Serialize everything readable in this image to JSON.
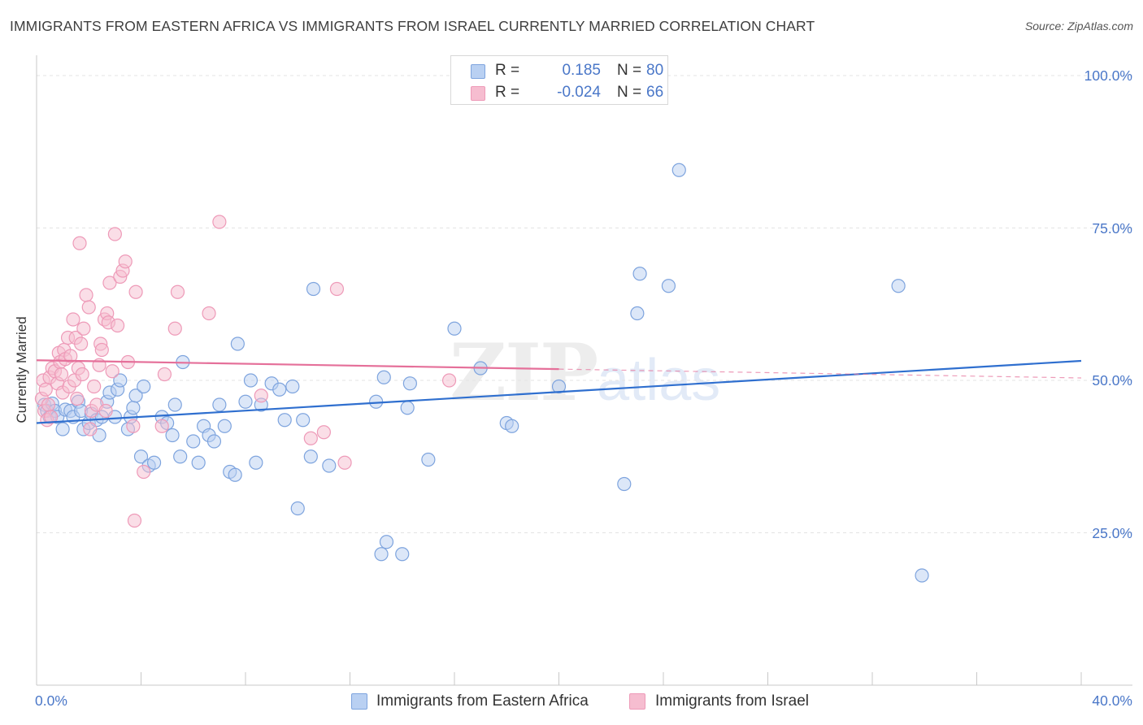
{
  "title": "IMMIGRANTS FROM EASTERN AFRICA VS IMMIGRANTS FROM ISRAEL CURRENTLY MARRIED CORRELATION CHART",
  "source": "Source: ZipAtlas.com",
  "watermark": {
    "zip": "ZIP",
    "atlas": "atlas"
  },
  "colors": {
    "blue": "#4a77c8",
    "blue_fill": "#b9d0f2",
    "blue_stroke": "#7ea4de",
    "blue_line": "#2f6fcf",
    "pink": "#e0628e",
    "pink_fill": "#f6bdd0",
    "pink_stroke": "#ee9ab8",
    "pink_line": "#e5709a"
  },
  "legend": {
    "rows": [
      {
        "r_label": "R =",
        "r_value": "0.185",
        "n_label": "N =",
        "n_value": "80",
        "color": "blue"
      },
      {
        "r_label": "R =",
        "r_value": "-0.024",
        "n_label": "N =",
        "n_value": "66",
        "color": "pink"
      }
    ]
  },
  "bottom_legend": [
    {
      "label": "Immigrants from Eastern Africa",
      "color": "blue"
    },
    {
      "label": "Immigrants from Israel",
      "color": "pink"
    }
  ],
  "chart_data": {
    "type": "scatter",
    "title": "IMMIGRANTS FROM EASTERN AFRICA VS IMMIGRANTS FROM ISRAEL CURRENTLY MARRIED CORRELATION CHART",
    "xlabel": "",
    "ylabel": "Currently Married",
    "xlim": [
      0,
      40
    ],
    "ylim": [
      0,
      102
    ],
    "x_tick_labels": [
      {
        "value": 0,
        "label": "0.0%"
      },
      {
        "value": 40,
        "label": "40.0%"
      }
    ],
    "y_tick_labels": [
      {
        "value": 25,
        "label": "25.0%"
      },
      {
        "value": 50,
        "label": "50.0%"
      },
      {
        "value": 75,
        "label": "75.0%"
      },
      {
        "value": 100,
        "label": "100.0%"
      }
    ],
    "x_minor_ticks": [
      0,
      4,
      8,
      12,
      16,
      20,
      24,
      28,
      32,
      36,
      40
    ],
    "grid": true,
    "series": [
      {
        "name": "Immigrants from Eastern Africa",
        "color": "blue",
        "r": 0.185,
        "n": 80,
        "trend": {
          "x": [
            0,
            40
          ],
          "y": [
            43.0,
            53.2
          ],
          "dashed_from": null
        },
        "points": [
          [
            0.3,
            46.0
          ],
          [
            0.4,
            45.0
          ],
          [
            0.5,
            44.0
          ],
          [
            0.6,
            46.2
          ],
          [
            0.7,
            45.0
          ],
          [
            0.8,
            44.0
          ],
          [
            1.0,
            42.0
          ],
          [
            1.1,
            45.2
          ],
          [
            1.3,
            45.0
          ],
          [
            1.4,
            44.0
          ],
          [
            1.6,
            46.5
          ],
          [
            1.7,
            45.0
          ],
          [
            1.8,
            42.0
          ],
          [
            2.0,
            43.0
          ],
          [
            2.1,
            44.5
          ],
          [
            2.3,
            43.5
          ],
          [
            2.4,
            41.0
          ],
          [
            2.5,
            44.0
          ],
          [
            2.7,
            46.5
          ],
          [
            2.8,
            48.0
          ],
          [
            3.0,
            44.0
          ],
          [
            3.1,
            48.5
          ],
          [
            3.2,
            50.0
          ],
          [
            3.5,
            42.0
          ],
          [
            3.6,
            44.0
          ],
          [
            3.7,
            45.5
          ],
          [
            3.8,
            47.5
          ],
          [
            4.0,
            37.5
          ],
          [
            4.1,
            49.0
          ],
          [
            4.3,
            36.0
          ],
          [
            4.5,
            36.5
          ],
          [
            4.8,
            44.0
          ],
          [
            5.0,
            43.0
          ],
          [
            5.2,
            41.0
          ],
          [
            5.3,
            46.0
          ],
          [
            5.5,
            37.5
          ],
          [
            5.6,
            53.0
          ],
          [
            6.0,
            40.0
          ],
          [
            6.2,
            36.5
          ],
          [
            6.4,
            42.5
          ],
          [
            6.6,
            41.0
          ],
          [
            7.0,
            46.0
          ],
          [
            7.2,
            42.5
          ],
          [
            7.4,
            35.0
          ],
          [
            7.6,
            34.5
          ],
          [
            7.7,
            56.0
          ],
          [
            8.0,
            46.5
          ],
          [
            8.2,
            50.0
          ],
          [
            8.4,
            36.5
          ],
          [
            8.6,
            46.0
          ],
          [
            9.0,
            49.5
          ],
          [
            9.3,
            48.5
          ],
          [
            9.5,
            43.5
          ],
          [
            9.8,
            49.0
          ],
          [
            10.0,
            29.0
          ],
          [
            10.2,
            43.5
          ],
          [
            10.5,
            37.5
          ],
          [
            10.6,
            65.0
          ],
          [
            11.2,
            36.0
          ],
          [
            13.0,
            46.5
          ],
          [
            13.2,
            21.5
          ],
          [
            13.3,
            50.5
          ],
          [
            13.4,
            23.5
          ],
          [
            14.0,
            21.5
          ],
          [
            14.2,
            45.5
          ],
          [
            14.3,
            49.5
          ],
          [
            15.0,
            37.0
          ],
          [
            16.0,
            58.5
          ],
          [
            17.0,
            52.0
          ],
          [
            18.0,
            43.0
          ],
          [
            18.2,
            42.5
          ],
          [
            22.5,
            33.0
          ],
          [
            23.0,
            61.0
          ],
          [
            23.1,
            67.5
          ],
          [
            24.2,
            65.5
          ],
          [
            24.6,
            84.5
          ],
          [
            33.0,
            65.5
          ],
          [
            33.9,
            18.0
          ],
          [
            20.0,
            49.0
          ],
          [
            6.8,
            40.0
          ]
        ]
      },
      {
        "name": "Immigrants from Israel",
        "color": "pink",
        "r": -0.024,
        "n": 66,
        "trend": {
          "x": [
            0,
            40
          ],
          "y": [
            53.3,
            50.4
          ],
          "dashed_from": 20
        },
        "points": [
          [
            0.2,
            47.0
          ],
          [
            0.25,
            50.0
          ],
          [
            0.3,
            45.0
          ],
          [
            0.35,
            48.5
          ],
          [
            0.4,
            43.5
          ],
          [
            0.45,
            46.0
          ],
          [
            0.5,
            50.5
          ],
          [
            0.55,
            44.0
          ],
          [
            0.6,
            52.0
          ],
          [
            0.7,
            51.5
          ],
          [
            0.8,
            49.5
          ],
          [
            0.85,
            54.5
          ],
          [
            0.9,
            53.0
          ],
          [
            0.95,
            51.0
          ],
          [
            1.0,
            48.0
          ],
          [
            1.05,
            55.0
          ],
          [
            1.1,
            53.5
          ],
          [
            1.2,
            57.0
          ],
          [
            1.25,
            49.0
          ],
          [
            1.3,
            54.0
          ],
          [
            1.4,
            60.0
          ],
          [
            1.45,
            50.0
          ],
          [
            1.5,
            57.0
          ],
          [
            1.55,
            47.0
          ],
          [
            1.6,
            52.0
          ],
          [
            1.65,
            72.5
          ],
          [
            1.7,
            56.0
          ],
          [
            1.75,
            51.0
          ],
          [
            1.8,
            58.5
          ],
          [
            1.9,
            64.0
          ],
          [
            2.0,
            62.0
          ],
          [
            2.05,
            42.0
          ],
          [
            2.1,
            45.0
          ],
          [
            2.2,
            49.0
          ],
          [
            2.3,
            46.0
          ],
          [
            2.4,
            52.5
          ],
          [
            2.45,
            56.0
          ],
          [
            2.5,
            55.0
          ],
          [
            2.6,
            60.0
          ],
          [
            2.65,
            45.0
          ],
          [
            2.7,
            61.0
          ],
          [
            2.75,
            59.5
          ],
          [
            2.8,
            66.0
          ],
          [
            2.9,
            51.5
          ],
          [
            3.0,
            74.0
          ],
          [
            3.1,
            59.0
          ],
          [
            3.2,
            67.0
          ],
          [
            3.3,
            68.0
          ],
          [
            3.4,
            69.5
          ],
          [
            3.5,
            53.0
          ],
          [
            3.7,
            42.5
          ],
          [
            3.75,
            27.0
          ],
          [
            3.8,
            64.5
          ],
          [
            4.1,
            35.0
          ],
          [
            4.8,
            42.5
          ],
          [
            4.9,
            51.0
          ],
          [
            5.3,
            58.5
          ],
          [
            5.4,
            64.5
          ],
          [
            6.6,
            61.0
          ],
          [
            7.0,
            76.0
          ],
          [
            8.6,
            47.5
          ],
          [
            10.5,
            40.5
          ],
          [
            11.0,
            41.5
          ],
          [
            11.5,
            65.0
          ],
          [
            11.8,
            36.5
          ],
          [
            15.8,
            50.0
          ]
        ]
      }
    ]
  }
}
